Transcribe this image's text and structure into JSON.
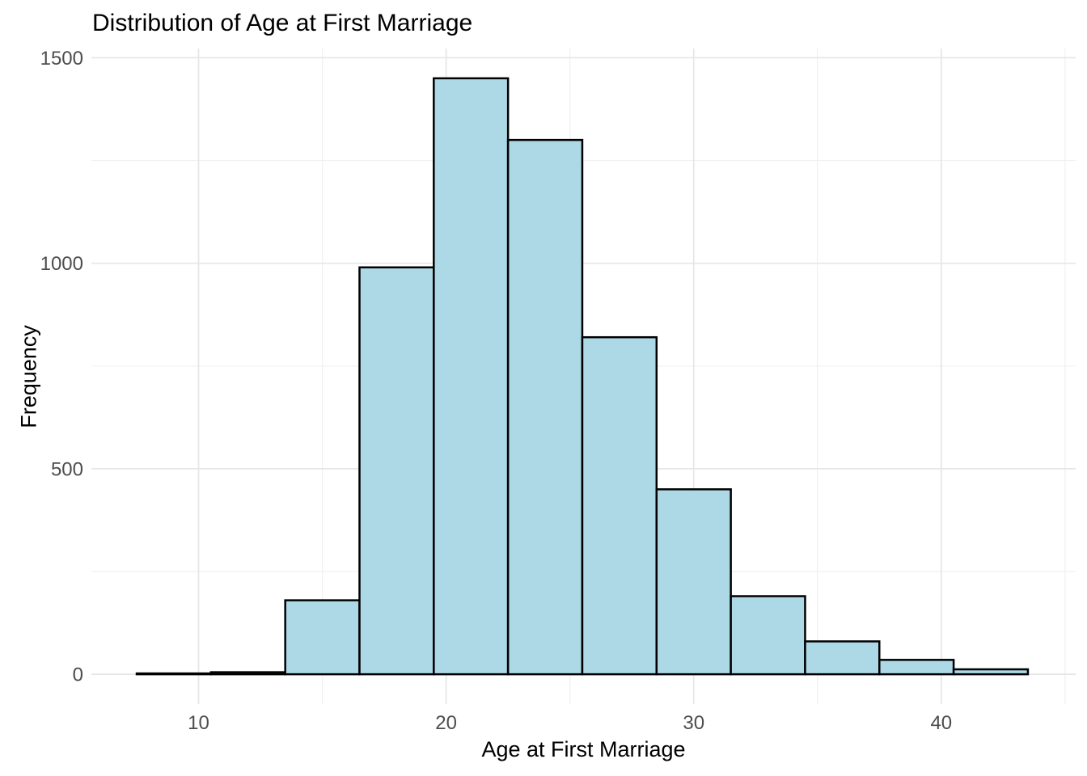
{
  "chart_data": {
    "type": "histogram",
    "title": "Distribution of Age at First Marriage",
    "xlabel": "Age at First Marriage",
    "ylabel": "Frequency",
    "bin_edges": [
      7.5,
      10.5,
      13.5,
      16.5,
      19.5,
      22.5,
      25.5,
      28.5,
      31.5,
      34.5,
      37.5,
      40.5,
      43.5
    ],
    "counts": [
      2,
      5,
      180,
      990,
      1450,
      1300,
      820,
      450,
      190,
      80,
      35,
      12
    ],
    "x_ticks": [
      10,
      20,
      30,
      40
    ],
    "x_minor_gridlines": [
      15,
      25,
      35,
      45
    ],
    "y_ticks": [
      0,
      500,
      1000,
      1500
    ],
    "y_minor_gridlines": [
      250,
      750,
      1250
    ],
    "xlim": [
      5.67,
      45.43
    ],
    "ylim": [
      -72.5,
      1522.5
    ],
    "grid": true,
    "legend": false,
    "colors": {
      "background": "#FFFFFF",
      "bar_fill": "#ADD8E6",
      "bar_stroke": "#000000",
      "grid_major": "#E6E6E6",
      "grid_minor": "#F0F0F0",
      "tick_label": "#4D4D4D",
      "title_text": "#000000"
    }
  }
}
